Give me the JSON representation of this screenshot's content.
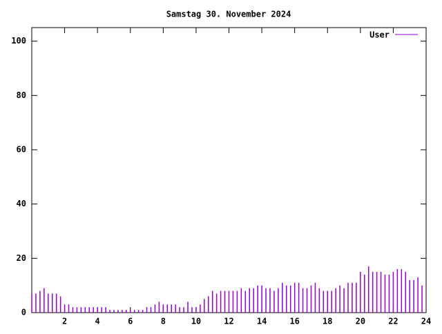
{
  "chart_data": {
    "type": "impulse",
    "title": "Samstag 30. November 2024",
    "series": [
      {
        "name": "User",
        "color": "#9400d3",
        "x": [
          0,
          0.25,
          0.5,
          0.75,
          1,
          1.25,
          1.5,
          1.75,
          2,
          2.25,
          2.5,
          2.75,
          3,
          3.25,
          3.5,
          3.75,
          4,
          4.25,
          4.5,
          4.75,
          5,
          5.25,
          5.5,
          5.75,
          6,
          6.25,
          6.5,
          6.75,
          7,
          7.25,
          7.5,
          7.75,
          8,
          8.25,
          8.5,
          8.75,
          9,
          9.25,
          9.5,
          9.75,
          10,
          10.25,
          10.5,
          10.75,
          11,
          11.25,
          11.5,
          11.75,
          12,
          12.25,
          12.5,
          12.75,
          13,
          13.25,
          13.5,
          13.75,
          14,
          14.25,
          14.5,
          14.75,
          15,
          15.25,
          15.5,
          15.75,
          16,
          16.25,
          16.5,
          16.75,
          17,
          17.25,
          17.5,
          17.75,
          18,
          18.25,
          18.5,
          18.75,
          19,
          19.25,
          19.5,
          19.75,
          20,
          20.25,
          20.5,
          20.75,
          21,
          21.25,
          21.5,
          21.75,
          22,
          22.25,
          22.5,
          22.75,
          23,
          23.25,
          23.5,
          23.75
        ],
        "values": [
          7,
          7,
          8,
          9,
          7,
          7,
          7,
          6,
          3,
          3,
          2,
          2,
          2,
          2,
          2,
          2,
          2,
          2,
          2,
          1,
          1,
          1,
          1,
          1,
          1,
          1,
          1,
          1,
          2,
          2,
          3,
          4,
          3,
          3,
          3,
          3,
          2,
          2,
          4,
          2,
          2,
          3,
          5,
          6,
          8,
          7,
          8,
          8,
          8,
          8,
          8,
          9,
          8,
          9,
          9,
          10,
          10,
          9,
          9,
          8,
          9,
          11,
          10,
          10,
          11,
          11,
          9,
          9,
          10,
          11,
          9,
          8,
          8,
          8,
          9,
          10,
          9,
          11,
          11,
          11,
          15,
          14,
          17,
          15,
          15,
          15,
          14,
          14,
          15,
          16,
          16,
          15,
          12,
          12,
          13,
          10
        ]
      }
    ],
    "xlim": [
      0,
      24
    ],
    "ylim": [
      0,
      105
    ],
    "xticks": [
      2,
      4,
      6,
      8,
      10,
      12,
      14,
      16,
      18,
      20,
      22,
      24
    ],
    "yticks": [
      0,
      20,
      40,
      60,
      80,
      100
    ]
  }
}
